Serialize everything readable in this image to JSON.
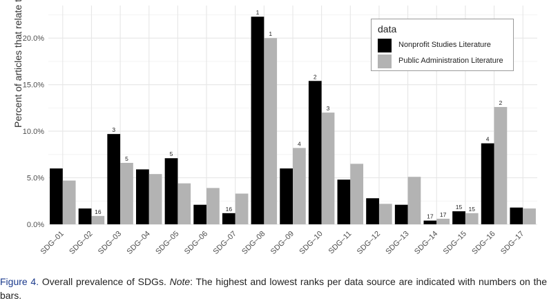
{
  "figure": {
    "caption_label": "Figure 4.",
    "caption_text_1": " Overall prevalence of SDGs. ",
    "caption_note": "Note",
    "caption_text_2": ": The highest and lowest ranks per data source are indicated with numbers on the bars."
  },
  "colors": {
    "nonprofit": "#000000",
    "public_admin": "#b3b3b3",
    "grid": "#e6e6e6",
    "caption_label": "#1b3a8c"
  },
  "chart_data": {
    "type": "bar",
    "title": "",
    "xlabel": "",
    "ylabel": "Percent of articles that relate to given SDG",
    "ylim": [
      0,
      23.5
    ],
    "yticks": [
      0,
      5,
      10,
      15,
      20
    ],
    "ytick_labels": [
      "0.0%",
      "5.0%",
      "10.0%",
      "15.0%",
      "20.0%"
    ],
    "grid": true,
    "legend": {
      "title": "data",
      "position": "top-right"
    },
    "categories": [
      "SDG–01",
      "SDG–02",
      "SDG–03",
      "SDG–04",
      "SDG–05",
      "SDG–06",
      "SDG–07",
      "SDG–08",
      "SDG–09",
      "SDG–10",
      "SDG–11",
      "SDG–12",
      "SDG–13",
      "SDG–14",
      "SDG–15",
      "SDG–16",
      "SDG–17"
    ],
    "series": [
      {
        "name": "Nonprofit Studies Literature",
        "values": [
          6.0,
          1.7,
          9.7,
          5.9,
          7.1,
          2.1,
          1.2,
          22.3,
          6.0,
          15.4,
          4.8,
          2.8,
          2.1,
          0.4,
          1.4,
          8.7,
          1.8
        ],
        "rank_labels": [
          "",
          "",
          "3",
          "",
          "5",
          "",
          "16",
          "1",
          "",
          "2",
          "",
          "",
          "",
          "17",
          "15",
          "4",
          ""
        ]
      },
      {
        "name": "Public Administration Literature",
        "values": [
          4.7,
          0.9,
          6.6,
          5.4,
          4.4,
          3.9,
          3.3,
          20.0,
          8.2,
          12.0,
          6.5,
          2.2,
          5.1,
          0.6,
          1.2,
          12.6,
          1.7
        ],
        "rank_labels": [
          "",
          "16",
          "5",
          "",
          "",
          "",
          "",
          "1",
          "4",
          "3",
          "",
          "",
          "",
          "17",
          "15",
          "2",
          ""
        ]
      }
    ]
  }
}
